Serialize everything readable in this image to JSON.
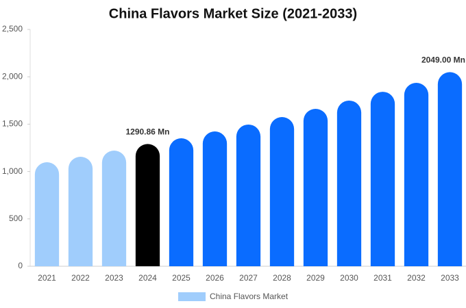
{
  "chart_data": {
    "type": "bar",
    "title": "China Flavors Market Size (2021-2033)",
    "categories": [
      "2021",
      "2022",
      "2023",
      "2024",
      "2025",
      "2026",
      "2027",
      "2028",
      "2029",
      "2030",
      "2031",
      "2032",
      "2033"
    ],
    "series": [
      {
        "name": "China Flavors Market",
        "color": "#a0cdfc",
        "values": [
          1098,
          1156,
          1221,
          1290.86,
          1351,
          1423,
          1496,
          1575,
          1662,
          1749,
          1842,
          1936,
          2049
        ],
        "value_labels": [
          null,
          null,
          null,
          "1290.86 Mn",
          null,
          null,
          null,
          null,
          null,
          null,
          null,
          null,
          "2049.00 Mn"
        ],
        "colors": [
          "#a0cdfc",
          "#a0cdfc",
          "#a0cdfc",
          "#000000",
          "#0a6cff",
          "#0a6cff",
          "#0a6cff",
          "#0a6cff",
          "#0a6cff",
          "#0a6cff",
          "#0a6cff",
          "#0a6cff",
          "#0a6cff"
        ]
      }
    ],
    "ylim": [
      0,
      2500
    ],
    "yticks": [
      0,
      500,
      {
        "value": 1000,
        "label": "1,000"
      },
      {
        "value": 1500,
        "label": "1,500"
      },
      {
        "value": 2000,
        "label": "2,000"
      },
      {
        "value": 2500,
        "label": "2,500"
      }
    ],
    "grid": false,
    "legend": "bottom"
  }
}
